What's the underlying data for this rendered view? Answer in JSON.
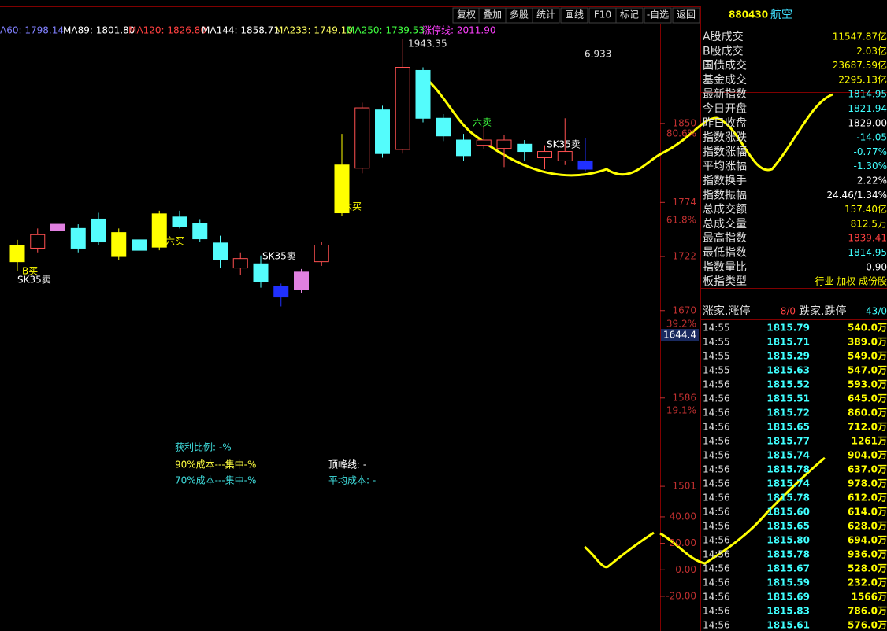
{
  "toolbar": [
    "复权",
    "叠加",
    "多股",
    "统计",
    "画线",
    "F10",
    "标记",
    "-自选",
    "返回"
  ],
  "ma_legend": [
    {
      "text": "A60: 1798.14",
      "color": "#8080ff"
    },
    {
      "text": "MA89: 1801.80",
      "color": "#ffffff"
    },
    {
      "text": "MA120: 1826.80",
      "color": "#ff4040"
    },
    {
      "text": "MA144: 1858.71",
      "color": "#ffffff"
    },
    {
      "text": "MA233: 1749.10",
      "color": "#ffff60"
    },
    {
      "text": "MA250: 1739.53",
      "color": "#40ff40"
    },
    {
      "text": "涨停线: 2011.90",
      "color": "#ff40ff"
    }
  ],
  "price_axis": {
    "ylim": [
      1492,
      1946
    ],
    "ticks": [
      1850,
      1774,
      1722,
      1670,
      1586,
      1501
    ],
    "pct_labels": [
      "80.6%",
      "61.8%",
      "39.2%",
      "19.1%"
    ],
    "current": "1644.4"
  },
  "candles": [
    {
      "o": 1733,
      "h": 1738,
      "l": 1708,
      "c": 1717,
      "color": "#ffff00",
      "fill": true
    },
    {
      "o": 1743,
      "h": 1749,
      "l": 1726,
      "c": 1730,
      "color": "#ff5050",
      "fill": false
    },
    {
      "o": 1753,
      "h": 1755,
      "l": 1745,
      "c": 1747,
      "color": "#e080e0",
      "fill": true
    },
    {
      "o": 1749,
      "h": 1753,
      "l": 1726,
      "c": 1730,
      "color": "#54fcfc",
      "fill": true
    },
    {
      "o": 1758,
      "h": 1764,
      "l": 1733,
      "c": 1736,
      "color": "#54fcfc",
      "fill": true
    },
    {
      "o": 1745,
      "h": 1749,
      "l": 1719,
      "c": 1722,
      "color": "#ffff00",
      "fill": true
    },
    {
      "o": 1738,
      "h": 1742,
      "l": 1725,
      "c": 1728,
      "color": "#54fcfc",
      "fill": true
    },
    {
      "o": 1763,
      "h": 1766,
      "l": 1728,
      "c": 1731,
      "color": "#ffff00",
      "fill": true
    },
    {
      "o": 1760,
      "h": 1766,
      "l": 1749,
      "c": 1751,
      "color": "#54fcfc",
      "fill": true
    },
    {
      "o": 1754,
      "h": 1758,
      "l": 1736,
      "c": 1739,
      "color": "#54fcfc",
      "fill": true
    },
    {
      "o": 1735,
      "h": 1742,
      "l": 1711,
      "c": 1719,
      "color": "#54fcfc",
      "fill": true
    },
    {
      "o": 1720,
      "h": 1726,
      "l": 1704,
      "c": 1711,
      "color": "#ff5050",
      "fill": false
    },
    {
      "o": 1715,
      "h": 1723,
      "l": 1692,
      "c": 1698,
      "color": "#54fcfc",
      "fill": true
    },
    {
      "o": 1693,
      "h": 1696,
      "l": 1674,
      "c": 1683,
      "color": "#2030ff",
      "fill": true
    },
    {
      "o": 1707,
      "h": 1710,
      "l": 1687,
      "c": 1690,
      "color": "#e080e0",
      "fill": true
    },
    {
      "o": 1733,
      "h": 1736,
      "l": 1713,
      "c": 1717,
      "color": "#ff5050",
      "fill": false
    },
    {
      "o": 1810,
      "h": 1840,
      "l": 1761,
      "c": 1764,
      "color": "#ffff00",
      "fill": true
    },
    {
      "o": 1865,
      "h": 1870,
      "l": 1802,
      "c": 1807,
      "color": "#ff5050",
      "fill": false
    },
    {
      "o": 1863,
      "h": 1867,
      "l": 1817,
      "c": 1821,
      "color": "#54fcfc",
      "fill": true
    },
    {
      "o": 1904,
      "h": 1931,
      "l": 1821,
      "c": 1825,
      "color": "#ff5050",
      "fill": false
    },
    {
      "o": 1901,
      "h": 1904,
      "l": 1851,
      "c": 1855,
      "color": "#54fcfc",
      "fill": true
    },
    {
      "o": 1855,
      "h": 1859,
      "l": 1833,
      "c": 1838,
      "color": "#54fcfc",
      "fill": true
    },
    {
      "o": 1834,
      "h": 1840,
      "l": 1814,
      "c": 1819,
      "color": "#54fcfc",
      "fill": true
    },
    {
      "o": 1834,
      "h": 1847,
      "l": 1825,
      "c": 1829,
      "color": "#ff5050",
      "fill": false
    },
    {
      "o": 1834,
      "h": 1839,
      "l": 1808,
      "c": 1826,
      "color": "#ff5050",
      "fill": false
    },
    {
      "o": 1830,
      "h": 1834,
      "l": 1814,
      "c": 1823,
      "color": "#54fcfc",
      "fill": true
    },
    {
      "o": 1823,
      "h": 1829,
      "l": 1806,
      "c": 1817,
      "color": "#ff5050",
      "fill": false
    },
    {
      "o": 1823,
      "h": 1855,
      "l": 1810,
      "c": 1814,
      "color": "#ff5050",
      "fill": false
    },
    {
      "o": 1814,
      "h": 1836,
      "l": 1804,
      "c": 1806,
      "color": "#2030ff",
      "fill": true
    }
  ],
  "annotations": [
    "1943.35",
    "6.933",
    "SK35卖",
    "六买",
    "SK35卖",
    "六卖",
    "SK35卖",
    "六买",
    "B买"
  ],
  "chip_info": [
    "获利比例: -%",
    "90%成本---集中-%",
    "70%成本---集中-%",
    "顶峰线: -",
    "平均成本: -"
  ],
  "sub_axis": {
    "ylim": [
      -45,
      56
    ],
    "ticks": [
      {
        "value": 40,
        "label": "40.00"
      },
      {
        "value": 20,
        "label": "20.00"
      },
      {
        "value": 0,
        "label": "0.00"
      },
      {
        "value": -20,
        "label": "-20.00"
      }
    ]
  },
  "header": {
    "code": "880430",
    "name": "航空"
  },
  "stats": [
    [
      "A股成交",
      "11547.87亿"
    ],
    [
      "B股成交",
      "2.03亿"
    ],
    [
      "国债成交",
      "23687.59亿"
    ],
    [
      "基金成交",
      "2295.13亿"
    ],
    [
      "最新指数",
      "1814.95"
    ],
    [
      "今日开盘",
      "1821.94"
    ],
    [
      "昨日收盘",
      "1829.00"
    ],
    [
      "指数涨跌",
      "-14.05"
    ],
    [
      "指数涨幅",
      "-0.77%"
    ],
    [
      "平均涨幅",
      "-1.30%"
    ],
    [
      "指数换手",
      "2.22%"
    ],
    [
      "指数振幅",
      "24.46/1.34%"
    ],
    [
      "总成交额",
      "157.40亿"
    ],
    [
      "总成交量",
      "812.5万"
    ],
    [
      "最高指数",
      "1839.41"
    ],
    [
      "最低指数",
      "1814.95"
    ],
    [
      "指数量比",
      "0.90"
    ],
    [
      "板指类型",
      "行业 加权 成份股"
    ]
  ],
  "breadth": [
    "涨家.涨停",
    "8/0",
    "跌家.跌停",
    "43/0"
  ],
  "ticks_tape": [
    [
      "14:55",
      "1815.79",
      "540.0万"
    ],
    [
      "14:55",
      "1815.71",
      "389.0万"
    ],
    [
      "14:55",
      "1815.29",
      "549.0万"
    ],
    [
      "14:55",
      "1815.63",
      "547.0万"
    ],
    [
      "14:56",
      "1815.52",
      "593.0万"
    ],
    [
      "14:56",
      "1815.51",
      "645.0万"
    ],
    [
      "14:56",
      "1815.72",
      "860.0万"
    ],
    [
      "14:56",
      "1815.65",
      "712.0万"
    ],
    [
      "14:56",
      "1815.77",
      "1261万"
    ],
    [
      "14:56",
      "1815.74",
      "904.0万"
    ],
    [
      "14:56",
      "1815.78",
      "637.0万"
    ],
    [
      "14:56",
      "1815.74",
      "978.0万"
    ],
    [
      "14:56",
      "1815.78",
      "612.0万"
    ],
    [
      "14:56",
      "1815.60",
      "614.0万"
    ],
    [
      "14:56",
      "1815.65",
      "628.0万"
    ],
    [
      "14:56",
      "1815.80",
      "694.0万"
    ],
    [
      "14:56",
      "1815.78",
      "936.0万"
    ],
    [
      "14:56",
      "1815.67",
      "528.0万"
    ],
    [
      "14:56",
      "1815.59",
      "232.0万"
    ],
    [
      "14:56",
      "1815.69",
      "1566万"
    ],
    [
      "14:56",
      "1815.83",
      "786.0万"
    ],
    [
      "14:56",
      "1815.61",
      "576.0万"
    ]
  ]
}
